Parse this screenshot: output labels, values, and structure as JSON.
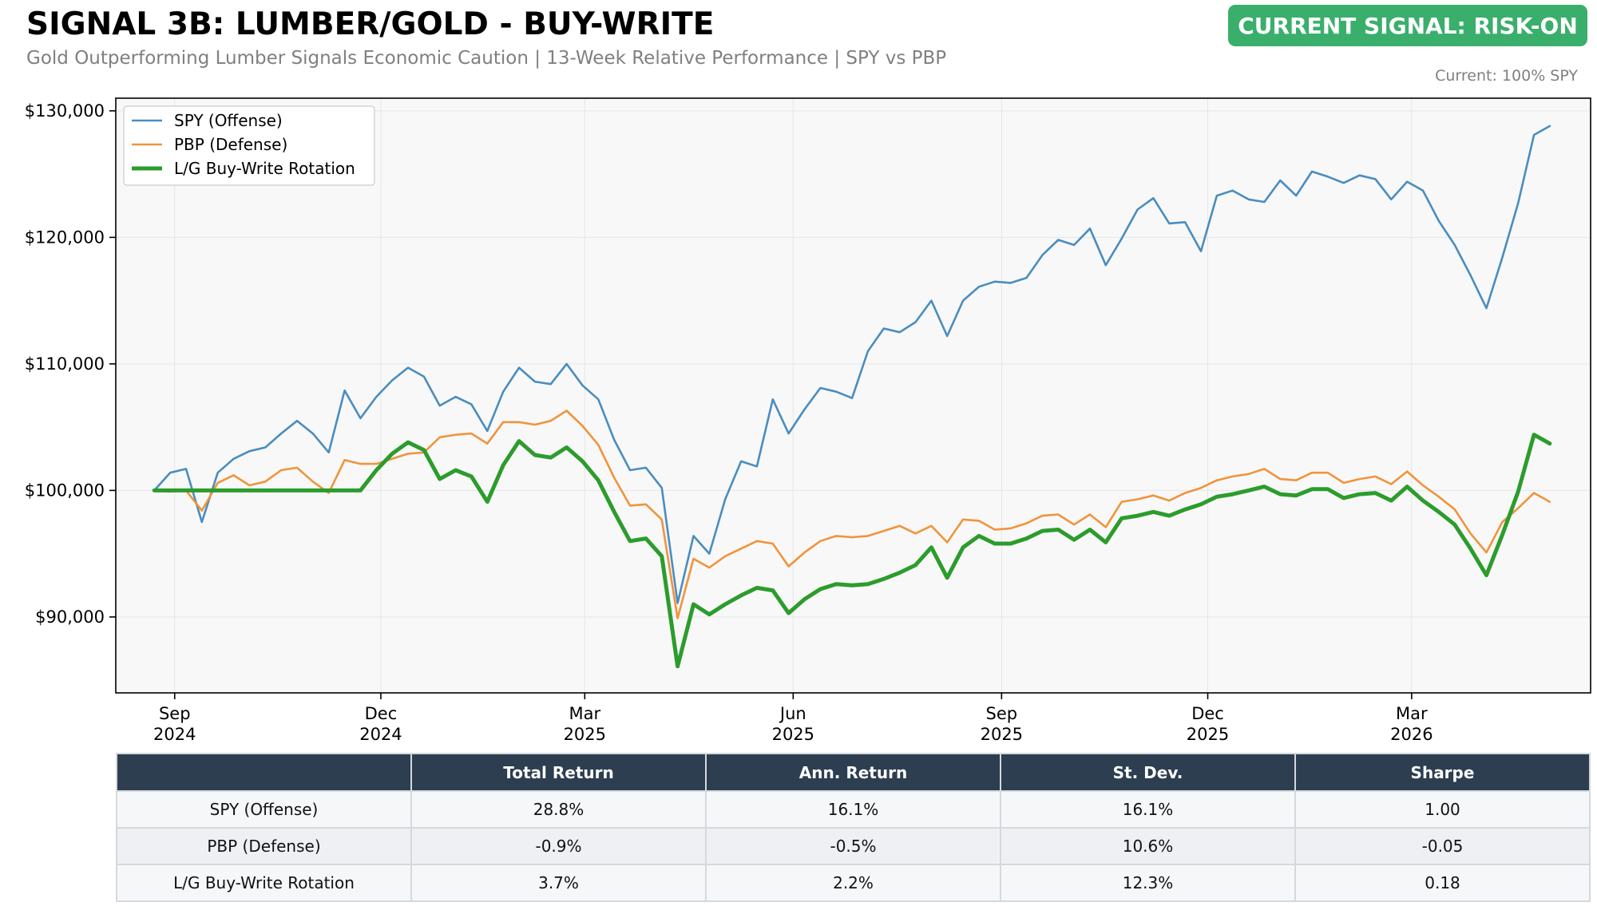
{
  "header": {
    "title": "SIGNAL 3B: LUMBER/GOLD - BUY-WRITE",
    "subtitle": "Gold Outperforming Lumber Signals Economic Caution | 13-Week Relative Performance | SPY vs PBP",
    "signal_badge": "CURRENT SIGNAL: RISK-ON",
    "signal_color": "#3aaf6c",
    "current_allocation": "Current: 100% SPY"
  },
  "chart_data": {
    "type": "line",
    "title": "SIGNAL 3B: LUMBER/GOLD - BUY-WRITE",
    "xlabel": "",
    "ylabel": "",
    "ylim": [
      84000,
      131000
    ],
    "yticks": [
      90000,
      100000,
      110000,
      120000,
      130000
    ],
    "ytick_labels": [
      "$90,000",
      "$100,000",
      "$110,000",
      "$120,000",
      "$130,000"
    ],
    "xlim": [
      "2024-08-06",
      "2026-05-19"
    ],
    "xticks": [
      "2024-09-01",
      "2024-12-01",
      "2025-03-01",
      "2025-06-01",
      "2025-09-01",
      "2025-12-01",
      "2026-03-01"
    ],
    "xtick_labels": [
      [
        "Sep",
        "2024"
      ],
      [
        "Dec",
        "2024"
      ],
      [
        "Mar",
        "2025"
      ],
      [
        "Jun",
        "2025"
      ],
      [
        "Sep",
        "2025"
      ],
      [
        "Dec",
        "2025"
      ],
      [
        "Mar",
        "2026"
      ]
    ],
    "grid": true,
    "legend_position": "upper-left",
    "x_start": "2024-08-23",
    "x_step_days": 7,
    "series": [
      {
        "name": "SPY (Offense)",
        "color": "#4a8dbf",
        "values": [
          100000,
          101400,
          101700,
          97500,
          101400,
          102500,
          103100,
          103400,
          104500,
          105500,
          104500,
          103000,
          107900,
          105700,
          107400,
          108700,
          109700,
          109000,
          106700,
          107400,
          106800,
          104700,
          107800,
          109700,
          108600,
          108400,
          110000,
          108300,
          107200,
          104000,
          101600,
          101800,
          100200,
          91100,
          96400,
          95000,
          99300,
          102300,
          101900,
          107200,
          104500,
          106400,
          108100,
          107800,
          107300,
          111000,
          112800,
          112500,
          113300,
          115000,
          112200,
          115000,
          116100,
          116500,
          116400,
          116800,
          118600,
          119800,
          119400,
          120700,
          117800,
          119900,
          122200,
          123100,
          121100,
          121200,
          118900,
          123300,
          123700,
          123000,
          122800,
          124500,
          123300,
          125200,
          124800,
          124300,
          124900,
          124600,
          123000,
          124400,
          123700,
          121300,
          119400,
          117000,
          114400,
          118400,
          122700,
          128100,
          128800
        ]
      },
      {
        "name": "PBP (Defense)",
        "color": "#f0943c",
        "values": [
          100000,
          99900,
          100000,
          98400,
          100600,
          101200,
          100400,
          100700,
          101600,
          101800,
          100700,
          99800,
          102400,
          102100,
          102100,
          102500,
          102900,
          103000,
          104200,
          104400,
          104500,
          103700,
          105400,
          105400,
          105200,
          105500,
          106300,
          105100,
          103600,
          101000,
          98800,
          98900,
          97700,
          89900,
          94600,
          93900,
          94800,
          95400,
          96000,
          95800,
          94000,
          95100,
          96000,
          96400,
          96300,
          96400,
          96800,
          97200,
          96600,
          97200,
          95900,
          97700,
          97600,
          96900,
          97000,
          97400,
          98000,
          98100,
          97300,
          98100,
          97100,
          99100,
          99300,
          99600,
          99200,
          99800,
          100200,
          100800,
          101100,
          101300,
          101700,
          100900,
          100800,
          101400,
          101400,
          100600,
          100900,
          101100,
          100500,
          101500,
          100400,
          99500,
          98500,
          96600,
          95100,
          97500,
          98600,
          99800,
          99100
        ]
      },
      {
        "name": "L/G Buy-Write Rotation",
        "color": "#2c9c2c",
        "values": [
          100000,
          100000,
          100000,
          100000,
          100000,
          100000,
          100000,
          100000,
          100000,
          100000,
          100000,
          100000,
          100000,
          100000,
          101600,
          102900,
          103800,
          103200,
          100900,
          101600,
          101100,
          99100,
          102000,
          103900,
          102800,
          102600,
          103400,
          102300,
          100800,
          98300,
          96000,
          96200,
          94800,
          86100,
          91000,
          90200,
          91000,
          91700,
          92300,
          92100,
          90300,
          91400,
          92200,
          92600,
          92500,
          92600,
          93000,
          93500,
          94100,
          95500,
          93100,
          95500,
          96400,
          95800,
          95800,
          96200,
          96800,
          96900,
          96100,
          96900,
          95900,
          97800,
          98000,
          98300,
          98000,
          98500,
          98900,
          99500,
          99700,
          100000,
          100300,
          99700,
          99600,
          100100,
          100100,
          99400,
          99700,
          99800,
          99200,
          100300,
          99200,
          98300,
          97300,
          95400,
          93300,
          96500,
          99900,
          104400,
          103700
        ]
      }
    ]
  },
  "stats_table": {
    "headers": [
      "",
      "Total Return",
      "Ann. Return",
      "St. Dev.",
      "Sharpe"
    ],
    "rows": [
      {
        "name": "SPY (Offense)",
        "total_return": "28.8%",
        "ann_return": "16.1%",
        "st_dev": "16.1%",
        "sharpe": "1.00"
      },
      {
        "name": "PBP (Defense)",
        "total_return": "-0.9%",
        "ann_return": "-0.5%",
        "st_dev": "10.6%",
        "sharpe": "-0.05"
      },
      {
        "name": "L/G Buy-Write Rotation",
        "total_return": "3.7%",
        "ann_return": "2.2%",
        "st_dev": "12.3%",
        "sharpe": "0.18"
      }
    ]
  }
}
